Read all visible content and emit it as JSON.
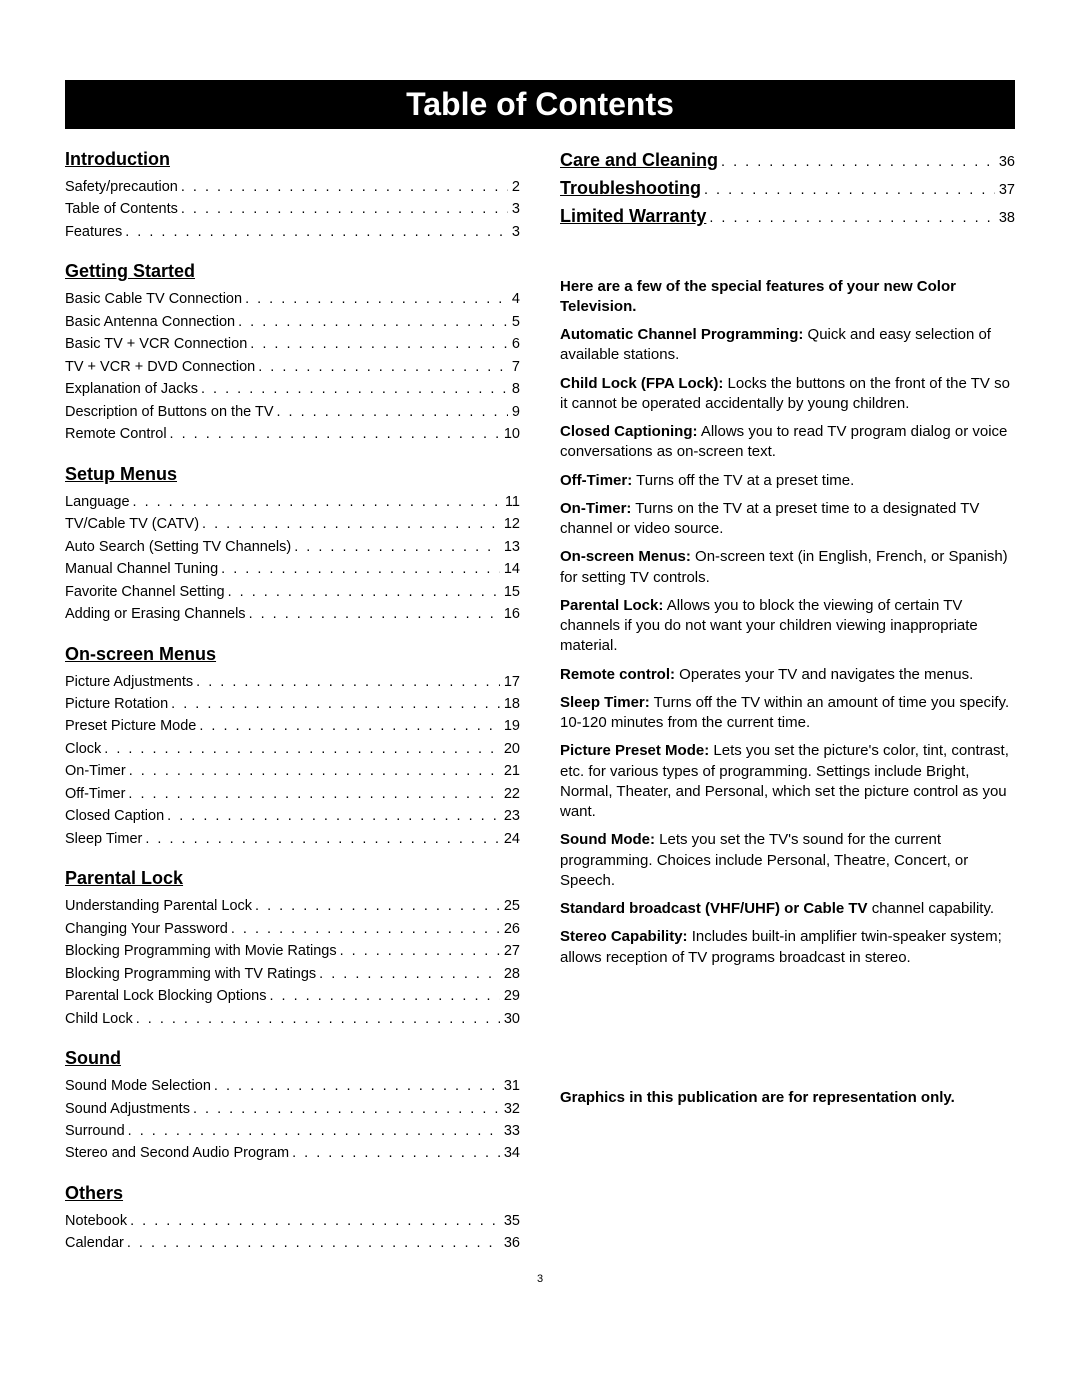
{
  "title": "Table of Contents",
  "page_number": "3",
  "left_sections": [
    {
      "heading": "Introduction",
      "items": [
        {
          "label": "Safety/precaution",
          "page": "2"
        },
        {
          "label": "Table of Contents",
          "page": "3"
        },
        {
          "label": "Features",
          "page": "3"
        }
      ]
    },
    {
      "heading": "Getting Started",
      "items": [
        {
          "label": "Basic Cable TV Connection",
          "page": "4"
        },
        {
          "label": "Basic Antenna Connection",
          "page": "5"
        },
        {
          "label": "Basic TV + VCR Connection",
          "page": "6"
        },
        {
          "label": "TV + VCR + DVD Connection",
          "page": "7"
        },
        {
          "label": "Explanation of Jacks",
          "page": "8"
        },
        {
          "label": "Description of Buttons on the TV",
          "page": "9"
        },
        {
          "label": "Remote Control",
          "page": "10"
        }
      ]
    },
    {
      "heading": "Setup Menus",
      "items": [
        {
          "label": "Language",
          "page": "11"
        },
        {
          "label": "TV/Cable TV (CATV)",
          "page": "12"
        },
        {
          "label": "Auto Search (Setting TV Channels)",
          "page": "13"
        },
        {
          "label": "Manual Channel Tuning",
          "page": "14"
        },
        {
          "label": "Favorite Channel Setting",
          "page": "15"
        },
        {
          "label": "Adding or Erasing Channels",
          "page": "16"
        }
      ]
    },
    {
      "heading": "On-screen Menus",
      "items": [
        {
          "label": "Picture Adjustments",
          "page": "17"
        },
        {
          "label": "Picture Rotation",
          "page": "18"
        },
        {
          "label": "Preset Picture Mode",
          "page": "19"
        },
        {
          "label": "Clock",
          "page": "20"
        },
        {
          "label": "On-Timer",
          "page": "21"
        },
        {
          "label": "Off-Timer",
          "page": "22"
        },
        {
          "label": "Closed Caption",
          "page": "23"
        },
        {
          "label": "Sleep Timer",
          "page": "24"
        }
      ]
    },
    {
      "heading": "Parental Lock",
      "items": [
        {
          "label": "Understanding Parental Lock",
          "page": "25"
        },
        {
          "label": "Changing Your Password",
          "page": "26"
        },
        {
          "label": "Blocking Programming with Movie Ratings",
          "page": "27"
        },
        {
          "label": "Blocking Programming with TV Ratings",
          "page": "28"
        },
        {
          "label": "Parental Lock Blocking Options",
          "page": "29"
        },
        {
          "label": "Child Lock",
          "page": "30"
        }
      ]
    },
    {
      "heading": "Sound",
      "items": [
        {
          "label": "Sound Mode Selection",
          "page": "31"
        },
        {
          "label": "Sound Adjustments",
          "page": "32"
        },
        {
          "label": "Surround",
          "page": "33"
        },
        {
          "label": "Stereo and Second Audio Program",
          "page": "34"
        }
      ]
    },
    {
      "heading": "Others",
      "items": [
        {
          "label": "Notebook",
          "page": "35"
        },
        {
          "label": "Calendar",
          "page": "36"
        }
      ]
    }
  ],
  "right_top_sections": [
    {
      "label": "Care and Cleaning",
      "page": "36"
    },
    {
      "label": "Troubleshooting",
      "page": "37"
    },
    {
      "label": "Limited Warranty",
      "page": "38"
    }
  ],
  "features_intro": "Here are a few of the special features of your new Color Television.",
  "features": [
    {
      "term": "Automatic Channel Programming:",
      "desc": " Quick and easy selection of available stations."
    },
    {
      "term": "Child Lock (FPA Lock):",
      "desc": " Locks the buttons on the front of the TV so it cannot be operated accidentally by young children."
    },
    {
      "term": "Closed Captioning:",
      "desc": " Allows you to read TV program dialog or voice conversations as on-screen text."
    },
    {
      "term": "Off-Timer:",
      "desc": " Turns off the TV at a preset time."
    },
    {
      "term": "On-Timer:",
      "desc": " Turns on the TV at a preset time to a designated TV channel or video source."
    },
    {
      "term": "On-screen Menus:",
      "desc": " On-screen text (in English, French, or Spanish) for setting TV controls."
    },
    {
      "term": "Parental Lock:",
      "desc": " Allows you to block the viewing of certain TV channels if you do not want your children viewing inappropriate material."
    },
    {
      "term": "Remote control:",
      "desc": " Operates your TV and navigates the menus."
    },
    {
      "term": "Sleep Timer:",
      "desc": " Turns off the TV within an amount of time you specify. 10-120 minutes from the current time."
    },
    {
      "term": "Picture Preset Mode:",
      "desc": " Lets you set the picture's color, tint, contrast, etc. for various types of programming. Settings include Bright, Normal, Theater, and Personal, which set the picture control as you want."
    },
    {
      "term": "Sound Mode:",
      "desc": " Lets you set the TV's sound for the current programming. Choices include Personal, Theatre, Concert, or Speech."
    },
    {
      "term": "Standard broadcast (VHF/UHF) or Cable TV",
      "desc": " channel capability."
    },
    {
      "term": "Stereo Capability:",
      "desc": " Includes built-in amplifier twin-speaker system; allows reception of TV programs broadcast in stereo."
    }
  ],
  "footnote": "Graphics in this publication are for representation only.",
  "colors": {
    "background": "#ffffff",
    "text": "#000000",
    "title_bg": "#000000",
    "title_fg": "#ffffff"
  },
  "typography": {
    "font_family": "Arial, Helvetica, sans-serif",
    "title_fontsize": 32,
    "heading_fontsize": 18,
    "body_fontsize": 15,
    "toc_fontsize": 14.5
  }
}
